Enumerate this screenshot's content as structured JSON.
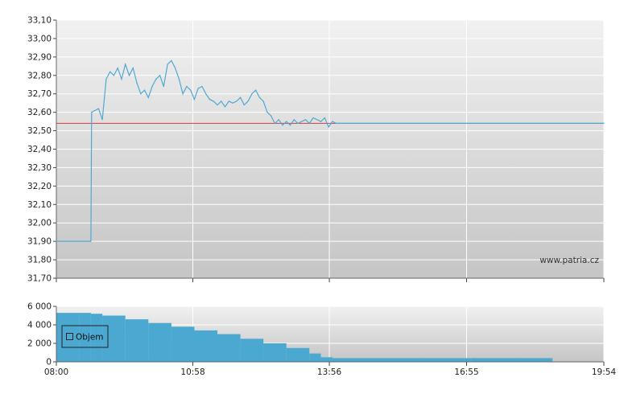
{
  "watermark": "www.patria.cz",
  "colors": {
    "price_line": "#4fa9d3",
    "reference_line": "#d23c3c",
    "volume_bars": "#4aa8d1",
    "grid": "#ffffff",
    "plot_bg_top": "#f1f1f1",
    "plot_bg_bottom": "#c5c5c5"
  },
  "chart_data": [
    {
      "type": "line",
      "title": "",
      "xlabel": "",
      "ylabel": "",
      "ylim": [
        31.7,
        33.1
      ],
      "xlim": [
        "08:00",
        "19:54"
      ],
      "grid": true,
      "y_ticks": [
        "33,10",
        "33,00",
        "32,90",
        "32,80",
        "32,70",
        "32,60",
        "32,50",
        "32,40",
        "32,30",
        "32,20",
        "32,10",
        "32,00",
        "31,90",
        "31,80",
        "31,70"
      ],
      "reference_line": 32.54,
      "series": [
        {
          "x": [
            "08:00",
            "08:45",
            "08:46",
            "08:55",
            "09:00",
            "09:05",
            "09:10",
            "09:15",
            "09:20",
            "09:25",
            "09:30",
            "09:35",
            "09:40",
            "09:45",
            "09:50",
            "09:55",
            "10:00",
            "10:05",
            "10:10",
            "10:15",
            "10:20",
            "10:25",
            "10:30",
            "10:35",
            "10:40",
            "10:45",
            "10:50",
            "10:55",
            "11:00",
            "11:05",
            "11:10",
            "11:15",
            "11:20",
            "11:25",
            "11:30",
            "11:35",
            "11:40",
            "11:45",
            "11:50",
            "11:55",
            "12:00",
            "12:05",
            "12:10",
            "12:15",
            "12:20",
            "12:25",
            "12:30",
            "12:35",
            "12:40",
            "12:45",
            "12:50",
            "12:55",
            "13:00",
            "13:05",
            "13:10",
            "13:15",
            "13:20",
            "13:25",
            "13:30",
            "13:35",
            "13:40",
            "13:45",
            "13:50",
            "13:55",
            "14:00",
            "14:05",
            "14:10",
            "14:15",
            "14:20",
            "19:54"
          ],
          "y": [
            31.9,
            31.9,
            32.6,
            32.62,
            32.56,
            32.78,
            32.82,
            32.8,
            32.84,
            32.78,
            32.86,
            32.8,
            32.84,
            32.76,
            32.7,
            32.72,
            32.68,
            32.74,
            32.78,
            32.8,
            32.74,
            32.86,
            32.88,
            32.84,
            32.78,
            32.7,
            32.74,
            32.72,
            32.67,
            32.73,
            32.74,
            32.7,
            32.67,
            32.66,
            32.64,
            32.66,
            32.63,
            32.66,
            32.65,
            32.66,
            32.68,
            32.64,
            32.66,
            32.7,
            32.72,
            32.68,
            32.66,
            32.6,
            32.58,
            32.54,
            32.56,
            32.53,
            32.55,
            32.53,
            32.56,
            32.54,
            32.55,
            32.56,
            32.54,
            32.57,
            32.56,
            32.55,
            32.57,
            32.52,
            32.55,
            32.54,
            32.54,
            32.54,
            32.54,
            32.54
          ]
        }
      ]
    },
    {
      "type": "bar",
      "title": "",
      "xlabel": "",
      "ylabel": "",
      "ylim": [
        0,
        6000
      ],
      "y_ticks": [
        "6 000",
        "4 000",
        "2 000",
        "0"
      ],
      "x_ticks": [
        "08:00",
        "10:58",
        "13:56",
        "16:55",
        "19:54"
      ],
      "legend": "Objem",
      "legend_position": "top-left",
      "grid": true,
      "series": [
        {
          "name": "Objem",
          "x": [
            "08:00",
            "08:30",
            "08:45",
            "09:00",
            "09:30",
            "10:00",
            "10:30",
            "11:00",
            "11:30",
            "12:00",
            "12:30",
            "13:00",
            "13:30",
            "13:45",
            "14:00",
            "15:00",
            "16:00",
            "17:00",
            "18:00",
            "18:45"
          ],
          "values": [
            5300,
            5300,
            5200,
            5000,
            4600,
            4200,
            3800,
            3400,
            3000,
            2500,
            2000,
            1500,
            900,
            500,
            400,
            400,
            400,
            400,
            400,
            400
          ]
        }
      ]
    }
  ]
}
